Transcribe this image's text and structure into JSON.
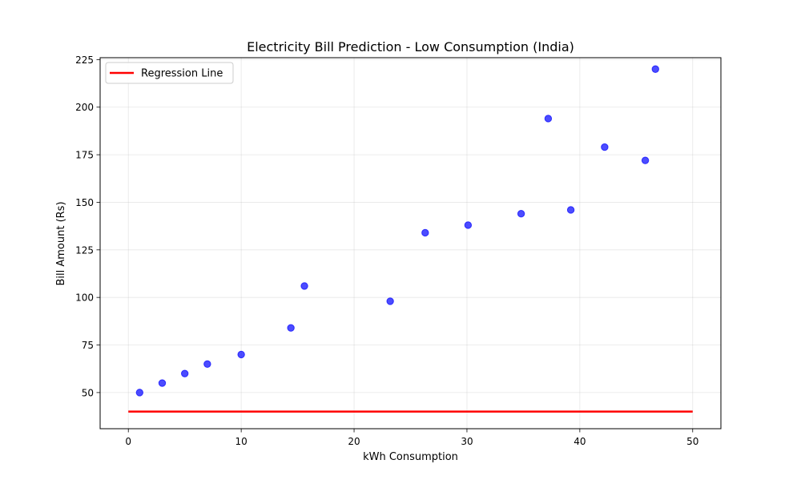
{
  "chart_data": {
    "type": "scatter",
    "title": "Electricity Bill Prediction - Low Consumption (India)",
    "xlabel": "kWh Consumption",
    "ylabel": "Bill Amount (Rs)",
    "xlim": [
      -2.5,
      52.5
    ],
    "ylim": [
      31,
      226
    ],
    "xticks": [
      0,
      10,
      20,
      30,
      40,
      50
    ],
    "yticks": [
      50,
      75,
      100,
      125,
      150,
      175,
      200,
      225
    ],
    "grid": true,
    "legend_position": "top-left",
    "series": [
      {
        "kind": "scatter",
        "color": "#0000ff",
        "points": [
          {
            "x": 1,
            "y": 50
          },
          {
            "x": 3,
            "y": 55
          },
          {
            "x": 5,
            "y": 60
          },
          {
            "x": 7,
            "y": 65
          },
          {
            "x": 10,
            "y": 70
          },
          {
            "x": 14.4,
            "y": 84
          },
          {
            "x": 15.6,
            "y": 106
          },
          {
            "x": 23.2,
            "y": 98
          },
          {
            "x": 26.3,
            "y": 134
          },
          {
            "x": 30.1,
            "y": 138
          },
          {
            "x": 34.8,
            "y": 144
          },
          {
            "x": 37.2,
            "y": 194
          },
          {
            "x": 39.2,
            "y": 146
          },
          {
            "x": 42.2,
            "y": 179
          },
          {
            "x": 45.8,
            "y": 172
          },
          {
            "x": 46.7,
            "y": 220
          }
        ]
      },
      {
        "kind": "line",
        "name": "Regression Line",
        "color": "#ff0000",
        "points": [
          {
            "x": 0,
            "y": 40
          },
          {
            "x": 50,
            "y": 40
          }
        ]
      }
    ]
  }
}
